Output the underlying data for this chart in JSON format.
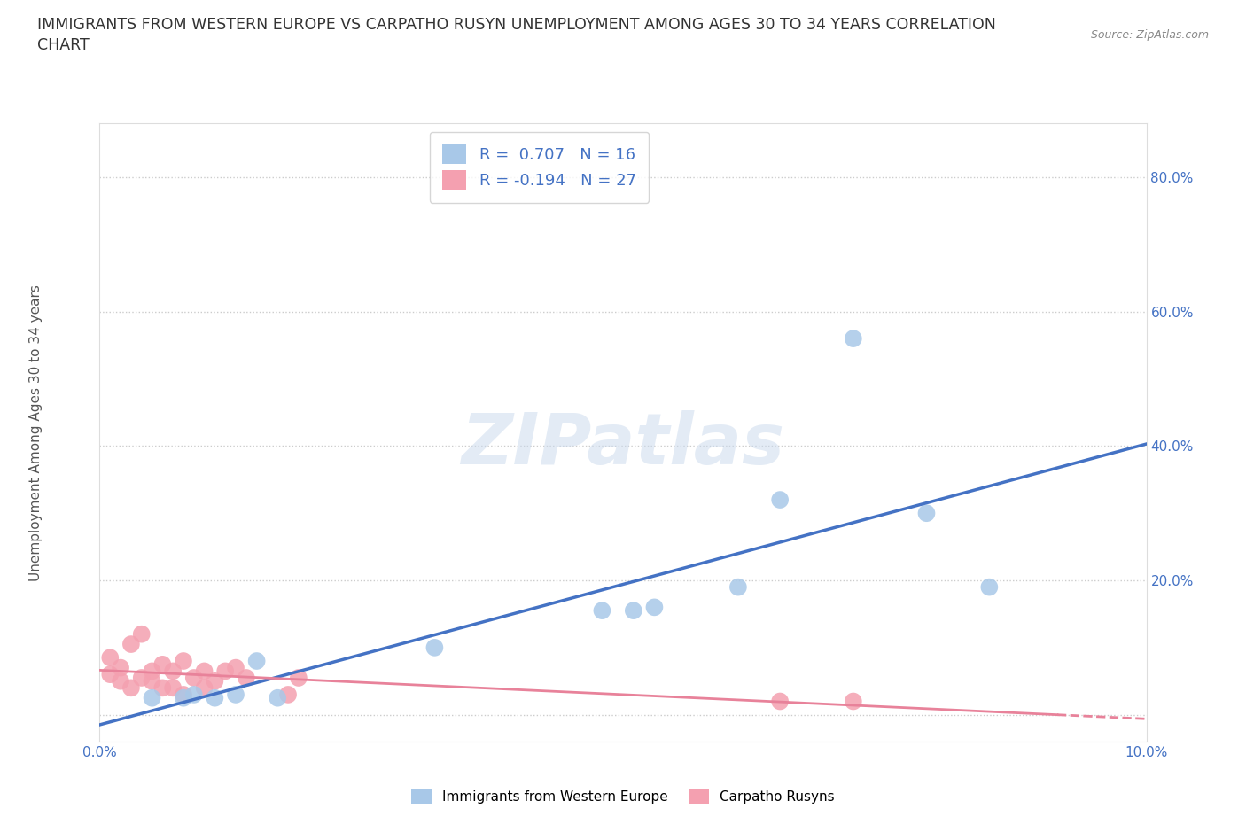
{
  "title_line1": "IMMIGRANTS FROM WESTERN EUROPE VS CARPATHO RUSYN UNEMPLOYMENT AMONG AGES 30 TO 34 YEARS CORRELATION",
  "title_line2": "CHART",
  "source_text": "Source: ZipAtlas.com",
  "ylabel": "Unemployment Among Ages 30 to 34 years",
  "watermark": "ZIPatlas",
  "blue_R": 0.707,
  "blue_N": 16,
  "pink_R": -0.194,
  "pink_N": 27,
  "blue_line_color": "#4472C4",
  "pink_line_color": "#E8829A",
  "blue_scatter_color": "#A8C8E8",
  "pink_scatter_color": "#F4A0B0",
  "xlim": [
    0.0,
    0.1
  ],
  "ylim": [
    -0.04,
    0.88
  ],
  "ytick_positions": [
    0.0,
    0.2,
    0.4,
    0.6,
    0.8
  ],
  "ytick_labels": [
    "",
    "20.0%",
    "40.0%",
    "60.0%",
    "80.0%"
  ],
  "blue_x": [
    0.005,
    0.008,
    0.009,
    0.011,
    0.013,
    0.015,
    0.017,
    0.032,
    0.048,
    0.051,
    0.053,
    0.061,
    0.065,
    0.072,
    0.079,
    0.085
  ],
  "blue_y": [
    0.025,
    0.025,
    0.03,
    0.025,
    0.03,
    0.08,
    0.025,
    0.1,
    0.155,
    0.155,
    0.16,
    0.19,
    0.32,
    0.56,
    0.3,
    0.19
  ],
  "pink_x": [
    0.001,
    0.001,
    0.002,
    0.002,
    0.003,
    0.003,
    0.004,
    0.004,
    0.005,
    0.005,
    0.006,
    0.006,
    0.007,
    0.007,
    0.008,
    0.008,
    0.009,
    0.01,
    0.01,
    0.011,
    0.012,
    0.013,
    0.014,
    0.018,
    0.019,
    0.065,
    0.072
  ],
  "pink_y": [
    0.06,
    0.085,
    0.05,
    0.07,
    0.04,
    0.105,
    0.055,
    0.12,
    0.05,
    0.065,
    0.04,
    0.075,
    0.04,
    0.065,
    0.03,
    0.08,
    0.055,
    0.04,
    0.065,
    0.05,
    0.065,
    0.07,
    0.055,
    0.03,
    0.055,
    0.02,
    0.02
  ],
  "background_color": "#FFFFFF",
  "grid_color": "#CCCCCC",
  "title_fontsize": 12.5,
  "axis_fontsize": 11,
  "tick_fontsize": 11,
  "legend_fontsize": 13,
  "tick_color": "#4472C4"
}
